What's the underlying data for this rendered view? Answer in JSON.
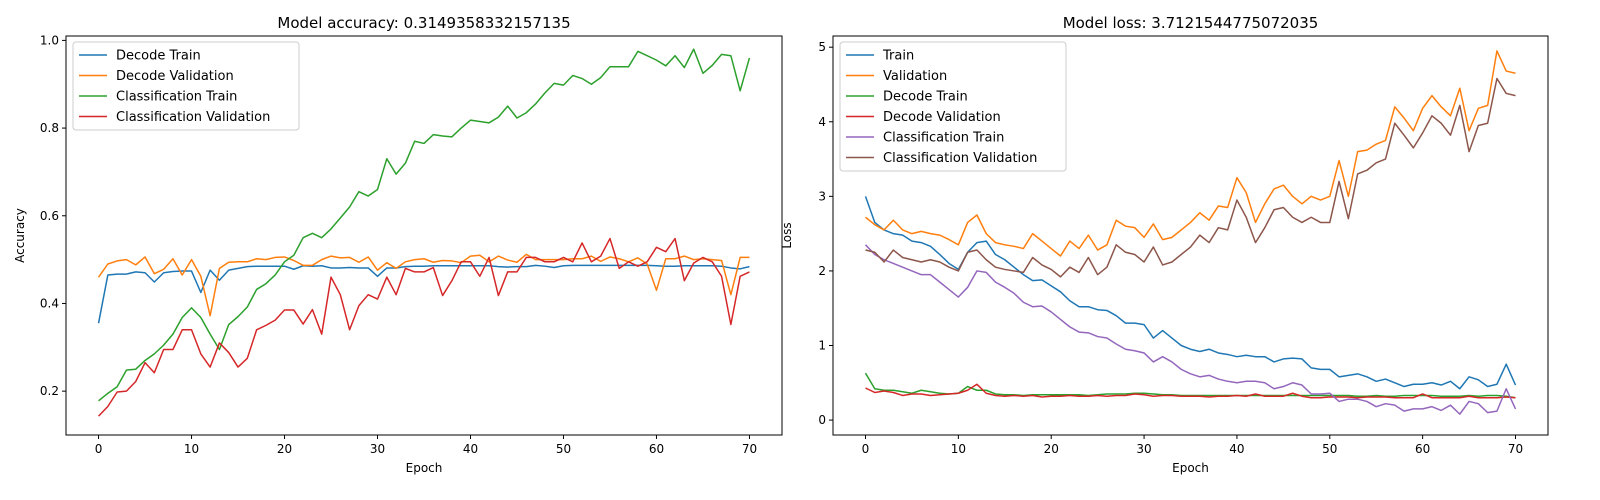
{
  "chart_data": [
    {
      "type": "line",
      "title": "Model accuracy: 0.3149358332157135",
      "xlabel": "Epoch",
      "ylabel": "Accuracy",
      "xlim": [
        -3.5,
        73.5
      ],
      "ylim": [
        0.1,
        1.01
      ],
      "xticks": [
        0,
        10,
        20,
        30,
        40,
        50,
        60,
        70
      ],
      "yticks": [
        0.2,
        0.4,
        0.6,
        0.8,
        1.0
      ],
      "legend_position": "upper left",
      "grid": false,
      "series": [
        {
          "name": "Decode Train",
          "color": "#1f77b4",
          "values": [
            0.355,
            0.465,
            0.467,
            0.467,
            0.472,
            0.47,
            0.449,
            0.47,
            0.473,
            0.474,
            0.474,
            0.425,
            0.476,
            0.453,
            0.476,
            0.48,
            0.484,
            0.485,
            0.485,
            0.485,
            0.485,
            0.478,
            0.486,
            0.485,
            0.486,
            0.481,
            0.481,
            0.482,
            0.481,
            0.481,
            0.462,
            0.481,
            0.481,
            0.484,
            0.485,
            0.485,
            0.486,
            0.486,
            0.486,
            0.486,
            0.486,
            0.486,
            0.486,
            0.484,
            0.483,
            0.484,
            0.484,
            0.487,
            0.485,
            0.482,
            0.486,
            0.487,
            0.487,
            0.487,
            0.487,
            0.487,
            0.487,
            0.487,
            0.487,
            0.487,
            0.486,
            0.485,
            0.485,
            0.486,
            0.486,
            0.486,
            0.486,
            0.485,
            0.481,
            0.479,
            0.484
          ]
        },
        {
          "name": "Decode Validation",
          "color": "#ff7f0e",
          "values": [
            0.46,
            0.49,
            0.497,
            0.5,
            0.488,
            0.506,
            0.468,
            0.478,
            0.502,
            0.465,
            0.5,
            0.462,
            0.372,
            0.48,
            0.494,
            0.495,
            0.495,
            0.502,
            0.5,
            0.505,
            0.506,
            0.498,
            0.487,
            0.487,
            0.5,
            0.508,
            0.504,
            0.505,
            0.494,
            0.506,
            0.476,
            0.493,
            0.48,
            0.495,
            0.5,
            0.502,
            0.494,
            0.498,
            0.497,
            0.493,
            0.508,
            0.51,
            0.495,
            0.508,
            0.499,
            0.494,
            0.512,
            0.5,
            0.5,
            0.5,
            0.5,
            0.502,
            0.502,
            0.508,
            0.496,
            0.506,
            0.502,
            0.495,
            0.504,
            0.49,
            0.43,
            0.502,
            0.502,
            0.508,
            0.5,
            0.502,
            0.5,
            0.498,
            0.42,
            0.505,
            0.505
          ]
        },
        {
          "name": "Classification Train",
          "color": "#2ca02c",
          "values": [
            0.178,
            0.195,
            0.21,
            0.248,
            0.25,
            0.27,
            0.285,
            0.305,
            0.33,
            0.368,
            0.39,
            0.368,
            0.33,
            0.295,
            0.352,
            0.37,
            0.392,
            0.432,
            0.445,
            0.465,
            0.495,
            0.51,
            0.55,
            0.56,
            0.55,
            0.57,
            0.595,
            0.62,
            0.655,
            0.645,
            0.66,
            0.73,
            0.695,
            0.72,
            0.77,
            0.765,
            0.785,
            0.782,
            0.78,
            0.8,
            0.818,
            0.815,
            0.812,
            0.825,
            0.85,
            0.823,
            0.835,
            0.855,
            0.88,
            0.902,
            0.898,
            0.92,
            0.913,
            0.9,
            0.915,
            0.94,
            0.94,
            0.94,
            0.975,
            0.965,
            0.955,
            0.942,
            0.965,
            0.938,
            0.98,
            0.925,
            0.943,
            0.968,
            0.965,
            0.885,
            0.96
          ]
        },
        {
          "name": "Classification Validation",
          "color": "#d62728",
          "values": [
            0.143,
            0.165,
            0.198,
            0.2,
            0.222,
            0.265,
            0.242,
            0.295,
            0.295,
            0.34,
            0.34,
            0.285,
            0.255,
            0.31,
            0.288,
            0.255,
            0.275,
            0.34,
            0.35,
            0.362,
            0.385,
            0.385,
            0.353,
            0.386,
            0.33,
            0.46,
            0.42,
            0.34,
            0.395,
            0.42,
            0.41,
            0.46,
            0.42,
            0.48,
            0.472,
            0.472,
            0.482,
            0.418,
            0.452,
            0.495,
            0.495,
            0.462,
            0.505,
            0.418,
            0.472,
            0.472,
            0.505,
            0.505,
            0.495,
            0.495,
            0.505,
            0.495,
            0.538,
            0.495,
            0.508,
            0.548,
            0.48,
            0.495,
            0.485,
            0.495,
            0.528,
            0.518,
            0.548,
            0.452,
            0.492,
            0.505,
            0.495,
            0.462,
            0.352,
            0.462,
            0.472
          ]
        }
      ]
    },
    {
      "type": "line",
      "title": "Model loss: 3.7121544775072035",
      "xlabel": "Epoch",
      "ylabel": "Loss",
      "xlim": [
        -3.5,
        73.5
      ],
      "ylim": [
        -0.2,
        5.15
      ],
      "xticks": [
        0,
        10,
        20,
        30,
        40,
        50,
        60,
        70
      ],
      "yticks": [
        0,
        1,
        2,
        3,
        4,
        5
      ],
      "legend_position": "upper left",
      "grid": false,
      "series": [
        {
          "name": "Train",
          "color": "#1f77b4",
          "values": [
            3.0,
            2.65,
            2.55,
            2.5,
            2.48,
            2.4,
            2.38,
            2.33,
            2.22,
            2.1,
            2.02,
            2.25,
            2.38,
            2.4,
            2.22,
            2.15,
            2.05,
            1.95,
            1.87,
            1.88,
            1.8,
            1.72,
            1.6,
            1.52,
            1.52,
            1.48,
            1.47,
            1.4,
            1.3,
            1.3,
            1.28,
            1.1,
            1.2,
            1.1,
            1.0,
            0.95,
            0.92,
            0.95,
            0.9,
            0.88,
            0.85,
            0.87,
            0.85,
            0.85,
            0.78,
            0.82,
            0.83,
            0.82,
            0.7,
            0.68,
            0.68,
            0.58,
            0.6,
            0.62,
            0.58,
            0.52,
            0.55,
            0.5,
            0.45,
            0.48,
            0.48,
            0.5,
            0.47,
            0.52,
            0.42,
            0.58,
            0.54,
            0.45,
            0.48,
            0.75,
            0.47
          ]
        },
        {
          "name": "Validation",
          "color": "#ff7f0e",
          "values": [
            2.72,
            2.62,
            2.55,
            2.68,
            2.55,
            2.5,
            2.53,
            2.5,
            2.48,
            2.42,
            2.35,
            2.65,
            2.75,
            2.5,
            2.38,
            2.35,
            2.33,
            2.3,
            2.5,
            2.4,
            2.3,
            2.2,
            2.4,
            2.3,
            2.48,
            2.28,
            2.35,
            2.68,
            2.6,
            2.58,
            2.45,
            2.63,
            2.42,
            2.45,
            2.55,
            2.65,
            2.78,
            2.68,
            2.87,
            2.85,
            3.25,
            3.05,
            2.65,
            2.9,
            3.1,
            3.15,
            3.0,
            2.9,
            3.0,
            2.95,
            3.0,
            3.48,
            3.0,
            3.6,
            3.62,
            3.7,
            3.75,
            4.2,
            4.05,
            3.88,
            4.18,
            4.35,
            4.2,
            4.08,
            4.45,
            3.88,
            4.18,
            4.22,
            4.95,
            4.68,
            4.65
          ]
        },
        {
          "name": "Decode Train",
          "color": "#2ca02c",
          "values": [
            0.63,
            0.42,
            0.4,
            0.4,
            0.38,
            0.36,
            0.4,
            0.38,
            0.36,
            0.35,
            0.36,
            0.45,
            0.4,
            0.4,
            0.35,
            0.34,
            0.34,
            0.33,
            0.34,
            0.34,
            0.34,
            0.34,
            0.34,
            0.34,
            0.33,
            0.34,
            0.35,
            0.35,
            0.35,
            0.36,
            0.36,
            0.35,
            0.34,
            0.34,
            0.33,
            0.33,
            0.33,
            0.33,
            0.33,
            0.33,
            0.33,
            0.33,
            0.33,
            0.33,
            0.33,
            0.33,
            0.33,
            0.33,
            0.33,
            0.33,
            0.33,
            0.33,
            0.33,
            0.32,
            0.32,
            0.33,
            0.32,
            0.32,
            0.33,
            0.33,
            0.33,
            0.33,
            0.32,
            0.32,
            0.32,
            0.33,
            0.32,
            0.33,
            0.33,
            0.32,
            0.3
          ]
        },
        {
          "name": "Decode Validation",
          "color": "#d62728",
          "values": [
            0.43,
            0.37,
            0.39,
            0.37,
            0.33,
            0.35,
            0.35,
            0.33,
            0.34,
            0.35,
            0.36,
            0.4,
            0.48,
            0.36,
            0.33,
            0.32,
            0.33,
            0.32,
            0.33,
            0.31,
            0.32,
            0.32,
            0.33,
            0.32,
            0.32,
            0.33,
            0.32,
            0.33,
            0.33,
            0.35,
            0.34,
            0.32,
            0.33,
            0.33,
            0.32,
            0.32,
            0.32,
            0.31,
            0.32,
            0.32,
            0.33,
            0.32,
            0.35,
            0.32,
            0.32,
            0.32,
            0.36,
            0.32,
            0.3,
            0.3,
            0.31,
            0.31,
            0.31,
            0.3,
            0.31,
            0.31,
            0.31,
            0.3,
            0.3,
            0.3,
            0.35,
            0.3,
            0.3,
            0.3,
            0.3,
            0.32,
            0.3,
            0.3,
            0.3,
            0.31,
            0.3
          ]
        },
        {
          "name": "Classification Train",
          "color": "#9467bd",
          "values": [
            2.35,
            2.22,
            2.15,
            2.1,
            2.05,
            2.0,
            1.95,
            1.95,
            1.85,
            1.75,
            1.65,
            1.78,
            2.0,
            1.98,
            1.85,
            1.78,
            1.7,
            1.58,
            1.52,
            1.53,
            1.45,
            1.35,
            1.25,
            1.18,
            1.17,
            1.12,
            1.1,
            1.02,
            0.95,
            0.93,
            0.9,
            0.78,
            0.85,
            0.78,
            0.68,
            0.62,
            0.58,
            0.6,
            0.55,
            0.52,
            0.5,
            0.52,
            0.52,
            0.5,
            0.42,
            0.45,
            0.5,
            0.47,
            0.35,
            0.35,
            0.36,
            0.25,
            0.28,
            0.28,
            0.25,
            0.18,
            0.22,
            0.2,
            0.12,
            0.15,
            0.15,
            0.18,
            0.13,
            0.2,
            0.08,
            0.25,
            0.22,
            0.1,
            0.12,
            0.42,
            0.15
          ]
        },
        {
          "name": "Classification Validation",
          "color": "#8c564b",
          "values": [
            2.28,
            2.25,
            2.12,
            2.28,
            2.18,
            2.15,
            2.12,
            2.15,
            2.12,
            2.05,
            2.0,
            2.25,
            2.28,
            2.15,
            2.05,
            2.02,
            2.0,
            1.98,
            2.18,
            2.08,
            2.02,
            1.92,
            2.05,
            1.98,
            2.18,
            1.95,
            2.05,
            2.35,
            2.25,
            2.22,
            2.12,
            2.32,
            2.08,
            2.12,
            2.22,
            2.32,
            2.48,
            2.38,
            2.58,
            2.55,
            2.95,
            2.72,
            2.38,
            2.58,
            2.82,
            2.85,
            2.72,
            2.65,
            2.72,
            2.65,
            2.65,
            3.2,
            2.7,
            3.3,
            3.35,
            3.45,
            3.5,
            3.98,
            3.82,
            3.65,
            3.85,
            4.08,
            3.98,
            3.82,
            4.22,
            3.6,
            3.95,
            3.98,
            4.58,
            4.38,
            4.35
          ]
        }
      ]
    }
  ]
}
